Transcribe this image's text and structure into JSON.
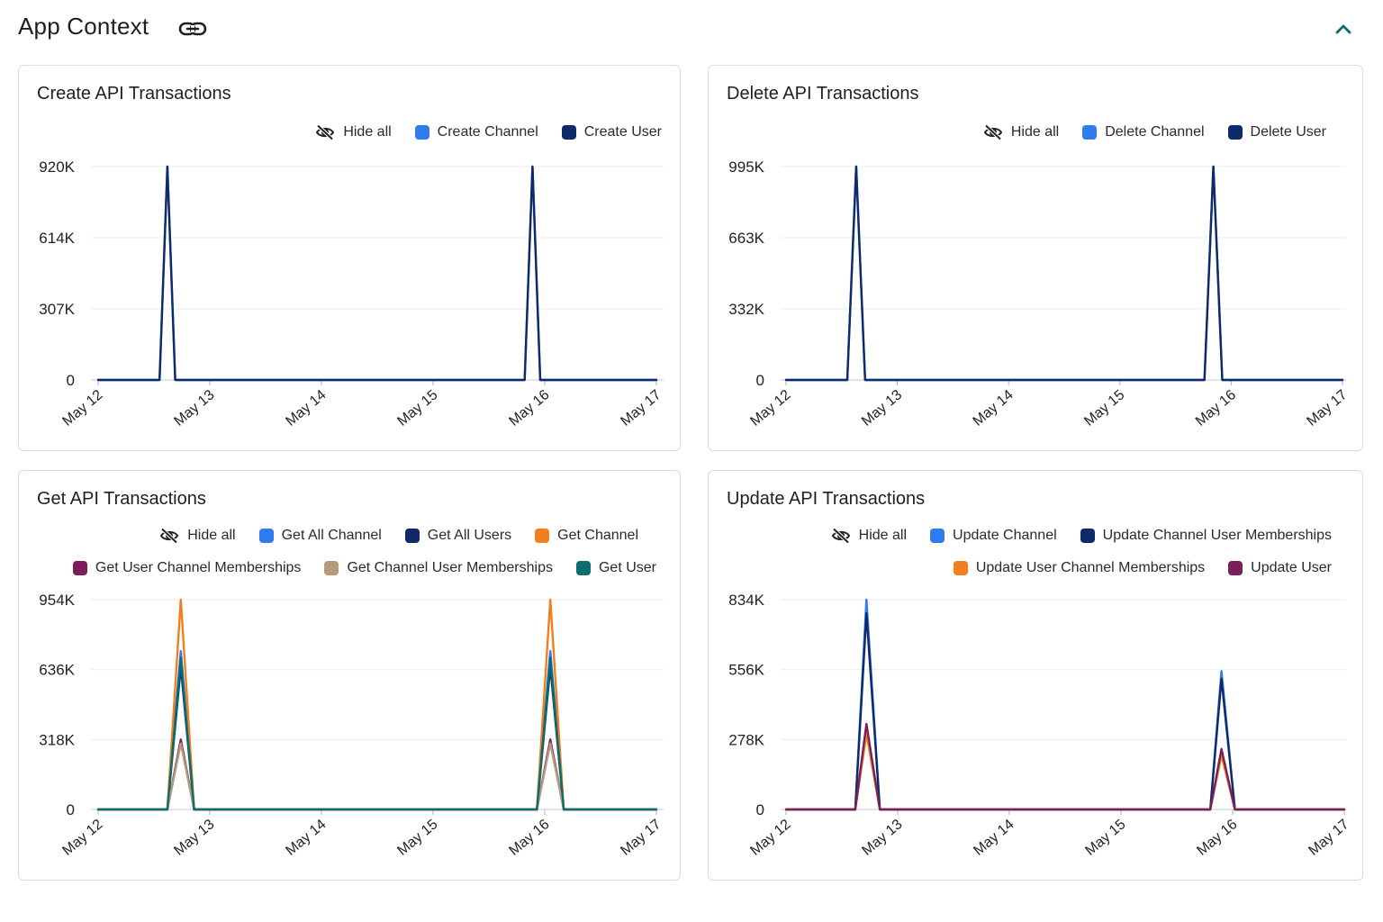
{
  "header": {
    "title": "App Context",
    "link_icon": "link-icon",
    "collapse_icon": "chevron-up-icon",
    "accent": "#0b6e6e"
  },
  "hide_all_label": "Hide all",
  "hide_all_icon": "eye-slash-icon",
  "x_ticks": [
    "May 12",
    "May 13",
    "May 14",
    "May 15",
    "May 16",
    "May 17"
  ],
  "chart_data": [
    {
      "type": "line",
      "title": "Create API Transactions",
      "xlabel": "",
      "ylabel": "",
      "x_ticks": [
        "May 12",
        "May 13",
        "May 14",
        "May 15",
        "May 16",
        "May 17"
      ],
      "y_ticks": [
        "0",
        "307K",
        "614K",
        "920K"
      ],
      "ylim": [
        0,
        920000
      ],
      "grid": true,
      "legend_position": "top-right",
      "series": [
        {
          "name": "Create Channel",
          "color": "#2f7bf0",
          "points": [
            [
              0.0,
              0
            ],
            [
              0.55,
              0
            ],
            [
              0.62,
              920000
            ],
            [
              0.69,
              0
            ],
            [
              3.82,
              0
            ],
            [
              3.89,
              920000
            ],
            [
              3.96,
              0
            ],
            [
              5.0,
              0
            ]
          ]
        },
        {
          "name": "Create User",
          "color": "#0f2a6b",
          "points": [
            [
              0.0,
              0
            ],
            [
              0.55,
              0
            ],
            [
              0.62,
              920000
            ],
            [
              0.69,
              0
            ],
            [
              3.82,
              0
            ],
            [
              3.89,
              920000
            ],
            [
              3.96,
              0
            ],
            [
              5.0,
              0
            ]
          ]
        }
      ]
    },
    {
      "type": "line",
      "title": "Delete API Transactions",
      "xlabel": "",
      "ylabel": "",
      "x_ticks": [
        "May 12",
        "May 13",
        "May 14",
        "May 15",
        "May 16",
        "May 17"
      ],
      "y_ticks": [
        "0",
        "332K",
        "663K",
        "995K"
      ],
      "ylim": [
        0,
        995000
      ],
      "grid": true,
      "legend_position": "top-right",
      "series": [
        {
          "name": "Delete Channel",
          "color": "#2f7bf0",
          "points": [
            [
              0.0,
              0
            ],
            [
              0.55,
              0
            ],
            [
              0.63,
              995000
            ],
            [
              0.71,
              0
            ],
            [
              3.76,
              0
            ],
            [
              3.84,
              995000
            ],
            [
              3.92,
              0
            ],
            [
              5.0,
              0
            ]
          ]
        },
        {
          "name": "Delete User",
          "color": "#0f2a6b",
          "points": [
            [
              0.0,
              0
            ],
            [
              0.55,
              0
            ],
            [
              0.63,
              995000
            ],
            [
              0.71,
              0
            ],
            [
              3.76,
              0
            ],
            [
              3.84,
              995000
            ],
            [
              3.92,
              0
            ],
            [
              5.0,
              0
            ]
          ]
        }
      ]
    },
    {
      "type": "line",
      "title": "Get API Transactions",
      "xlabel": "",
      "ylabel": "",
      "x_ticks": [
        "May 12",
        "May 13",
        "May 14",
        "May 15",
        "May 16",
        "May 17"
      ],
      "y_ticks": [
        "0",
        "318K",
        "636K",
        "954K"
      ],
      "ylim": [
        0,
        954000
      ],
      "grid": true,
      "legend_position": "top-right",
      "series": [
        {
          "name": "Get All Channel",
          "color": "#2f7bf0",
          "points": [
            [
              0.0,
              0
            ],
            [
              0.62,
              0
            ],
            [
              0.74,
              720000
            ],
            [
              0.86,
              0
            ],
            [
              3.93,
              0
            ],
            [
              4.05,
              720000
            ],
            [
              4.17,
              0
            ],
            [
              5.0,
              0
            ]
          ]
        },
        {
          "name": "Get All Users",
          "color": "#0f2a6b",
          "points": [
            [
              0.0,
              0
            ],
            [
              0.62,
              0
            ],
            [
              0.74,
              650000
            ],
            [
              0.86,
              0
            ],
            [
              3.93,
              0
            ],
            [
              4.05,
              650000
            ],
            [
              4.17,
              0
            ],
            [
              5.0,
              0
            ]
          ]
        },
        {
          "name": "Get Channel",
          "color": "#f37e1f",
          "points": [
            [
              0.0,
              0
            ],
            [
              0.62,
              0
            ],
            [
              0.74,
              954000
            ],
            [
              0.86,
              0
            ],
            [
              3.93,
              0
            ],
            [
              4.05,
              954000
            ],
            [
              4.17,
              0
            ],
            [
              5.0,
              0
            ]
          ]
        },
        {
          "name": "Get User Channel Memberships",
          "color": "#7a1f5c",
          "points": [
            [
              0.0,
              0
            ],
            [
              0.62,
              0
            ],
            [
              0.74,
              318000
            ],
            [
              0.86,
              0
            ],
            [
              3.93,
              0
            ],
            [
              4.05,
              318000
            ],
            [
              4.17,
              0
            ],
            [
              5.0,
              0
            ]
          ]
        },
        {
          "name": "Get Channel User Memberships",
          "color": "#b59b7a",
          "points": [
            [
              0.0,
              0
            ],
            [
              0.62,
              0
            ],
            [
              0.74,
              300000
            ],
            [
              0.86,
              0
            ],
            [
              3.93,
              0
            ],
            [
              4.05,
              300000
            ],
            [
              4.17,
              0
            ],
            [
              5.0,
              0
            ]
          ]
        },
        {
          "name": "Get User",
          "color": "#0b6e6e",
          "points": [
            [
              0.0,
              0
            ],
            [
              0.62,
              0
            ],
            [
              0.74,
              690000
            ],
            [
              0.86,
              0
            ],
            [
              3.93,
              0
            ],
            [
              4.05,
              690000
            ],
            [
              4.17,
              0
            ],
            [
              5.0,
              0
            ]
          ]
        }
      ]
    },
    {
      "type": "line",
      "title": "Update API Transactions",
      "xlabel": "",
      "ylabel": "",
      "x_ticks": [
        "May 12",
        "May 13",
        "May 14",
        "May 15",
        "May 16",
        "May 17"
      ],
      "y_ticks": [
        "0",
        "278K",
        "556K",
        "834K"
      ],
      "ylim": [
        0,
        834000
      ],
      "grid": true,
      "legend_position": "top-right",
      "series": [
        {
          "name": "Update Channel",
          "color": "#2f7bf0",
          "points": [
            [
              0.0,
              0
            ],
            [
              0.62,
              0
            ],
            [
              0.72,
              834000
            ],
            [
              0.84,
              0
            ],
            [
              3.8,
              0
            ],
            [
              3.9,
              550000
            ],
            [
              4.02,
              0
            ],
            [
              5.0,
              0
            ]
          ]
        },
        {
          "name": "Update Channel User Memberships",
          "color": "#0f2a6b",
          "points": [
            [
              0.0,
              0
            ],
            [
              0.62,
              0
            ],
            [
              0.72,
              780000
            ],
            [
              0.84,
              0
            ],
            [
              3.8,
              0
            ],
            [
              3.9,
              520000
            ],
            [
              4.02,
              0
            ],
            [
              5.0,
              0
            ]
          ]
        },
        {
          "name": "Update User Channel Memberships",
          "color": "#f37e1f",
          "points": [
            [
              0.0,
              0
            ],
            [
              0.62,
              0
            ],
            [
              0.72,
              300000
            ],
            [
              0.84,
              0
            ],
            [
              3.8,
              0
            ],
            [
              3.9,
              215000
            ],
            [
              4.02,
              0
            ],
            [
              5.0,
              0
            ]
          ]
        },
        {
          "name": "Update User",
          "color": "#7a1f5c",
          "points": [
            [
              0.0,
              0
            ],
            [
              0.62,
              0
            ],
            [
              0.72,
              340000
            ],
            [
              0.84,
              0
            ],
            [
              3.8,
              0
            ],
            [
              3.9,
              240000
            ],
            [
              4.02,
              0
            ],
            [
              5.0,
              0
            ]
          ]
        }
      ]
    }
  ]
}
